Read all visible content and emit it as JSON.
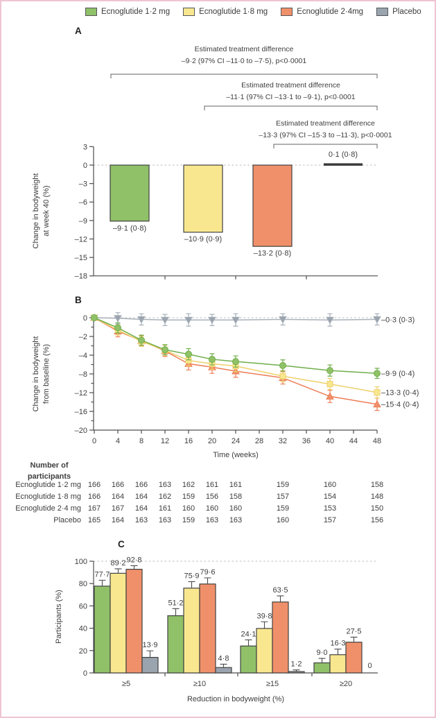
{
  "colors": {
    "green_fill": "#90c168",
    "yellow_fill": "#f9e78f",
    "orange_fill": "#f0906a",
    "gray_fill": "#9aa4ae",
    "green_line": "#6fae49",
    "yellow_line": "#eed06a",
    "orange_line": "#ec7c55",
    "gray_line": "#a7b0b9",
    "bar_stroke": "#414141",
    "axis": "#4d4d4d",
    "text": "#3d3d3d",
    "dashed": "#c6c6c6",
    "bracket": "#606060",
    "error": "#4a4a4a",
    "frame_pink": "#efc4d2",
    "placebo_bar_line": "#3a3a3a"
  },
  "legend": {
    "items": [
      {
        "label": "Ecnoglutide 1·2 mg",
        "color": "#90c168"
      },
      {
        "label": "Ecnoglutide 1·8 mg",
        "color": "#f9e78f"
      },
      {
        "label": "Ecnoglutide 2·4mg",
        "color": "#f0906a"
      },
      {
        "label": "Placebo",
        "color": "#9aa4ae"
      }
    ]
  },
  "chart_data": [
    {
      "panel_label": "A",
      "type": "bar",
      "ylabel_lines": [
        "Change in bodyweight",
        "at week 40 (%)"
      ],
      "yticks": [
        3,
        0,
        -3,
        -6,
        -9,
        -12,
        -15,
        -18
      ],
      "ylim": [
        -18,
        3
      ],
      "categories": [
        "Ecnoglutide 1·2 mg",
        "Ecnoglutide 1·8 mg",
        "Ecnoglutide 2·4 mg",
        "Placebo"
      ],
      "values": [
        -9.1,
        -10.9,
        -13.2,
        0.1
      ],
      "value_labels": [
        "–9·1 (0·8)",
        "–10·9 (0·9)",
        "–13·2 (0·8)",
        "0·1 (0·8)"
      ],
      "annotations": [
        {
          "line1": "Estimated treatment difference",
          "line2": "–9·2 (97% CI –11·0 to –7·5), p<0·0001"
        },
        {
          "line1": "Estimated treatment difference",
          "line2": "–11·1 (97% CI –13·1 to –9·1), p<0·0001"
        },
        {
          "line1": "Estimated treatment difference",
          "line2": "–13·3 (97% CI –15·3 to –11·3), p<0·0001"
        }
      ]
    },
    {
      "panel_label": "B",
      "type": "line",
      "xlabel": "Time (weeks)",
      "ylabel_lines": [
        "Change in bodyweight",
        "from baseline (%)"
      ],
      "x": [
        0,
        4,
        8,
        12,
        16,
        20,
        24,
        32,
        40,
        48
      ],
      "xticks": [
        0,
        4,
        8,
        12,
        16,
        20,
        24,
        28,
        32,
        36,
        40,
        44,
        48
      ],
      "ytick_labels": [
        "0",
        "–2",
        "–4",
        "–8",
        "–12",
        "–16",
        "–20"
      ],
      "ylim": [
        -20,
        0
      ],
      "series": [
        {
          "name": "Ecnoglutide 1·2 mg",
          "marker": "circle",
          "values": [
            0,
            -1.8,
            -4.0,
            -5.7,
            -6.5,
            -7.4,
            -7.8,
            -8.5,
            -9.4,
            -9.9
          ],
          "errors": [
            0,
            0.9,
            0.9,
            0.9,
            1.0,
            1.0,
            1.0,
            1.0,
            1.0,
            0.9
          ],
          "end_label": "–9·9 (0·4)"
        },
        {
          "name": "Ecnoglutide 1·8 mg",
          "marker": "square",
          "values": [
            0,
            -2.2,
            -4.2,
            -5.8,
            -7.6,
            -8.2,
            -8.6,
            -10.4,
            -11.8,
            -13.3
          ],
          "errors": [
            0,
            0.9,
            0.9,
            0.9,
            1.0,
            1.0,
            1.0,
            1.0,
            1.0,
            1.0
          ],
          "end_label": "–13·3 (0·4)"
        },
        {
          "name": "Ecnoglutide 2·4 mg",
          "marker": "triangle-up",
          "values": [
            0,
            -2.4,
            -4.1,
            -5.9,
            -8.2,
            -8.8,
            -9.5,
            -10.7,
            -14.0,
            -15.4
          ],
          "errors": [
            0,
            1.0,
            0.9,
            1.0,
            1.1,
            1.1,
            1.1,
            1.1,
            1.1,
            1.1
          ],
          "end_label": "–15·4 (0·4)"
        },
        {
          "name": "Placebo",
          "marker": "triangle-down",
          "values": [
            0,
            -0.1,
            -0.3,
            -0.4,
            -0.4,
            -0.4,
            -0.4,
            -0.3,
            -0.4,
            -0.3
          ],
          "errors": [
            0,
            1.0,
            1.0,
            1.0,
            1.1,
            1.0,
            1.1,
            1.0,
            1.1,
            1.0
          ],
          "end_label": "–0·3 (0·3)"
        }
      ]
    },
    {
      "panel_label": "C",
      "type": "bar",
      "xlabel": "Reduction in bodyweight (%)",
      "ylabel": "Participants (%)",
      "categories": [
        "≥5",
        "≥10",
        "≥15",
        "≥20"
      ],
      "yticks": [
        0,
        20,
        40,
        60,
        80,
        100
      ],
      "ylim": [
        0,
        100
      ],
      "series": [
        {
          "name": "Ecnoglutide 1·2 mg",
          "values": [
            77.7,
            51.2,
            24.1,
            9.0
          ],
          "errors": [
            5.3,
            6.4,
            5.5,
            4.0
          ],
          "labels": [
            "77·7",
            "51·2",
            "24·1",
            "9·0"
          ]
        },
        {
          "name": "Ecnoglutide 1·8 mg",
          "values": [
            89.2,
            75.9,
            39.8,
            16.3
          ],
          "errors": [
            4.0,
            5.8,
            6.0,
            5.0
          ],
          "labels": [
            "89·2",
            "75·9",
            "39·8",
            "16·3"
          ]
        },
        {
          "name": "Ecnoglutide 2·4 mg",
          "values": [
            92.8,
            79.6,
            63.5,
            27.5
          ],
          "errors": [
            3.2,
            5.5,
            5.5,
            4.5
          ],
          "labels": [
            "92·8",
            "79·6",
            "63·5",
            "27·5"
          ]
        },
        {
          "name": "Placebo",
          "values": [
            13.9,
            4.8,
            1.2,
            0
          ],
          "errors": [
            5.9,
            3.0,
            1.5,
            0
          ],
          "labels": [
            "13·9",
            "4·8",
            "1·2",
            "0"
          ]
        }
      ]
    }
  ],
  "participants_table": {
    "header_line1": "Number of",
    "header_line2": "participants",
    "weeks": [
      0,
      4,
      8,
      12,
      16,
      20,
      24,
      32,
      40,
      48
    ],
    "rows": [
      {
        "label": "Ecnoglutide 1·2 mg",
        "values": [
          166,
          166,
          166,
          163,
          162,
          161,
          161,
          159,
          160,
          158
        ]
      },
      {
        "label": "Ecnoglutide 1·8 mg",
        "values": [
          166,
          164,
          164,
          162,
          159,
          156,
          158,
          157,
          154,
          148
        ]
      },
      {
        "label": "Ecnoglutide 2·4 mg",
        "values": [
          167,
          167,
          164,
          161,
          160,
          160,
          160,
          159,
          153,
          150
        ]
      },
      {
        "label": "Placebo",
        "values": [
          165,
          164,
          163,
          163,
          159,
          163,
          163,
          160,
          157,
          156
        ]
      }
    ]
  }
}
